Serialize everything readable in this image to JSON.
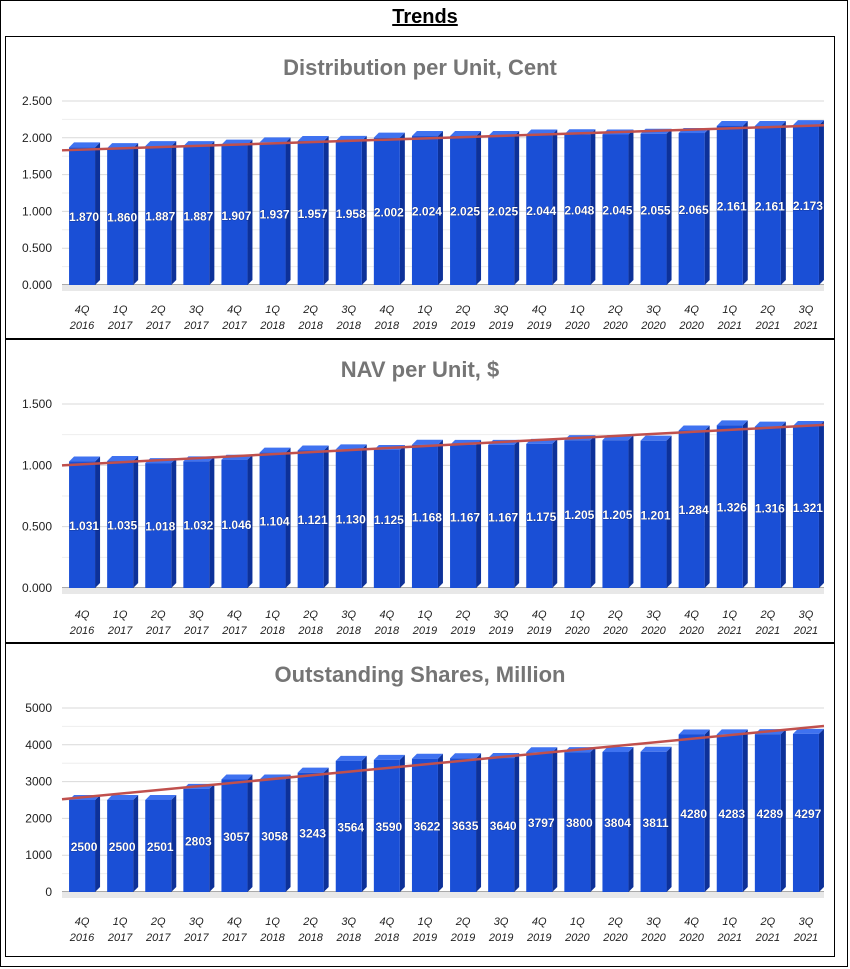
{
  "page": {
    "title": "Trends"
  },
  "colors": {
    "bar_front": "#1a4fd6",
    "bar_side": "#0d3199",
    "bar_top": "#3f72f0",
    "trend": "#c0504d",
    "grid": "#d9d9d9",
    "title": "#757575"
  },
  "chart_data": [
    {
      "type": "bar",
      "title": "Distribution per Unit, Cent",
      "categories": [
        "4Q 2016",
        "1Q 2017",
        "2Q 2017",
        "3Q 2017",
        "4Q 2017",
        "1Q 2018",
        "2Q 2018",
        "3Q 2018",
        "4Q 2018",
        "1Q 2019",
        "2Q 2019",
        "3Q 2019",
        "4Q 2019",
        "1Q 2020",
        "2Q 2020",
        "3Q 2020",
        "4Q 2020",
        "1Q 2021",
        "2Q 2021",
        "3Q 2021"
      ],
      "values": [
        1.87,
        1.86,
        1.887,
        1.887,
        1.907,
        1.937,
        1.957,
        1.958,
        2.002,
        2.024,
        2.025,
        2.025,
        2.044,
        2.048,
        2.045,
        2.055,
        2.065,
        2.161,
        2.161,
        2.173
      ],
      "labels": [
        "1.870",
        "1.860",
        "1.887",
        "1.887",
        "1.907",
        "1.937",
        "1.957",
        "1.958",
        "2.002",
        "2.024",
        "2.025",
        "2.025",
        "2.044",
        "2.048",
        "2.045",
        "2.055",
        "2.065",
        "2.161",
        "2.161",
        "2.173"
      ],
      "yticks": [
        "0.000",
        "0.500",
        "1.000",
        "1.500",
        "2.000",
        "2.500"
      ],
      "ylim": [
        0,
        2.5
      ],
      "trendline": [
        1.83,
        2.17
      ],
      "xlabel": "",
      "ylabel": "",
      "grid": true
    },
    {
      "type": "bar",
      "title": "NAV per Unit, $",
      "categories": [
        "4Q 2016",
        "1Q 2017",
        "2Q 2017",
        "3Q 2017",
        "4Q 2017",
        "1Q 2018",
        "2Q 2018",
        "3Q 2018",
        "4Q 2018",
        "1Q 2019",
        "2Q 2019",
        "3Q 2019",
        "4Q 2019",
        "1Q 2020",
        "2Q 2020",
        "3Q 2020",
        "4Q 2020",
        "1Q 2021",
        "2Q 2021",
        "3Q 2021"
      ],
      "values": [
        1.031,
        1.035,
        1.018,
        1.032,
        1.046,
        1.104,
        1.121,
        1.13,
        1.125,
        1.168,
        1.167,
        1.167,
        1.175,
        1.205,
        1.205,
        1.201,
        1.284,
        1.326,
        1.316,
        1.321
      ],
      "labels": [
        "1.031",
        "1.035",
        "1.018",
        "1.032",
        "1.046",
        "1.104",
        "1.121",
        "1.130",
        "1.125",
        "1.168",
        "1.167",
        "1.167",
        "1.175",
        "1.205",
        "1.205",
        "1.201",
        "1.284",
        "1.326",
        "1.316",
        "1.321"
      ],
      "yticks": [
        "0.000",
        "0.500",
        "1.000",
        "1.500"
      ],
      "ylim": [
        0,
        1.5
      ],
      "trendline": [
        1.0,
        1.33
      ],
      "xlabel": "",
      "ylabel": "",
      "grid": true
    },
    {
      "type": "bar",
      "title": "Outstanding Shares, Million",
      "categories": [
        "4Q 2016",
        "1Q 2017",
        "2Q 2017",
        "3Q 2017",
        "4Q 2017",
        "1Q 2018",
        "2Q 2018",
        "3Q 2018",
        "4Q 2018",
        "1Q 2019",
        "2Q 2019",
        "3Q 2019",
        "4Q 2019",
        "1Q 2020",
        "2Q 2020",
        "3Q 2020",
        "4Q 2020",
        "1Q 2021",
        "2Q 2021",
        "3Q 2021"
      ],
      "values": [
        2500,
        2500,
        2501,
        2803,
        3057,
        3058,
        3243,
        3564,
        3590,
        3622,
        3635,
        3640,
        3797,
        3800,
        3804,
        3811,
        4280,
        4283,
        4289,
        4297
      ],
      "labels": [
        "2500",
        "2500",
        "2501",
        "2803",
        "3057",
        "3058",
        "3243",
        "3564",
        "3590",
        "3622",
        "3635",
        "3640",
        "3797",
        "3800",
        "3804",
        "3811",
        "4280",
        "4283",
        "4289",
        "4297"
      ],
      "yticks": [
        "0",
        "1000",
        "2000",
        "3000",
        "4000",
        "5000"
      ],
      "ylim": [
        0,
        5000
      ],
      "trendline": [
        2520,
        4510
      ],
      "xlabel": "",
      "ylabel": "",
      "grid": true
    }
  ]
}
